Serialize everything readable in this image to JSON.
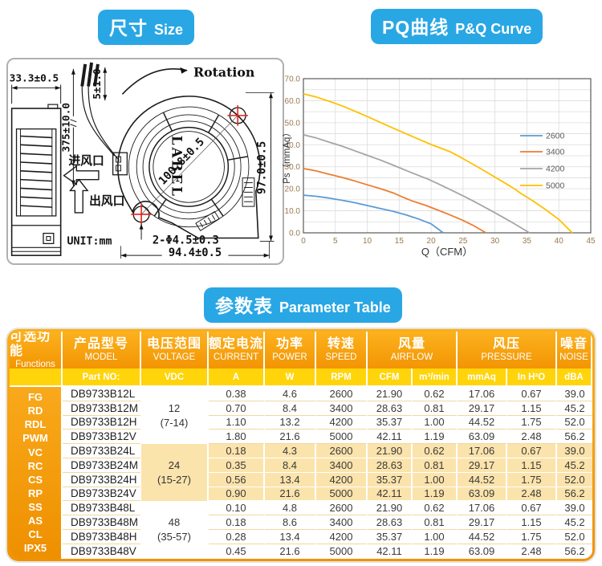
{
  "badges": {
    "size": {
      "zh": "尺寸",
      "en": "Size"
    },
    "pq": {
      "zh": "PQ曲线",
      "en": "P&Q Curve"
    },
    "param": {
      "zh": "参数表",
      "en": "Parameter Table"
    }
  },
  "drawing": {
    "rotation": "Rotation",
    "label": "LABEL",
    "unit": "UNIT:mm",
    "inlet": "进风口",
    "outlet": "出风口",
    "dim_side_width": "33.3±0.5",
    "dim_wire_length": "375±10.0",
    "dim_wire_tail": "5±1.0",
    "dim_hole_pitch": "100.8±0.5",
    "dim_height": "97.0±0.5",
    "dim_width": "94.4±0.5",
    "dim_holes": "2-Φ4.5±0.3"
  },
  "chart_data": {
    "type": "line",
    "title": "",
    "xlabel": "Q（CFM）",
    "ylabel": "Ps（mmAq）",
    "xlim": [
      0,
      45
    ],
    "ylim": [
      0,
      70
    ],
    "xticks": [
      0,
      5,
      10,
      15,
      20,
      25,
      30,
      35,
      40,
      45
    ],
    "yticks": [
      "0.0",
      "10.0",
      "20.0",
      "30.0",
      "40.0",
      "50.0",
      "60.0",
      "70.0"
    ],
    "grid": true,
    "grid_step_x": 5,
    "grid_step_y": 5,
    "legend_position": "right-inside",
    "axis_tick_color": "#9a7a4e",
    "series": [
      {
        "name": "2600",
        "color": "#5B9BD5",
        "points": [
          [
            0,
            17.1
          ],
          [
            2,
            16.6
          ],
          [
            4,
            15.8
          ],
          [
            6,
            14.8
          ],
          [
            8,
            13.7
          ],
          [
            10,
            12.4
          ],
          [
            12,
            11.1
          ],
          [
            14,
            9.8
          ],
          [
            16,
            8.2
          ],
          [
            18,
            6.3
          ],
          [
            20,
            4.1
          ],
          [
            21.9,
            0
          ]
        ]
      },
      {
        "name": "3400",
        "color": "#ED7D31",
        "points": [
          [
            0,
            29.2
          ],
          [
            2,
            28.1
          ],
          [
            4,
            26.6
          ],
          [
            6,
            25.2
          ],
          [
            8,
            23.6
          ],
          [
            10,
            21.8
          ],
          [
            12,
            20.1
          ],
          [
            14,
            18.2
          ],
          [
            15.5,
            16.3
          ],
          [
            17,
            14.5
          ],
          [
            19,
            12.6
          ],
          [
            21,
            10.4
          ],
          [
            23,
            8.1
          ],
          [
            25,
            5.6
          ],
          [
            26.5,
            3.5
          ],
          [
            28.6,
            0
          ]
        ]
      },
      {
        "name": "4200",
        "color": "#A5A5A5",
        "points": [
          [
            0,
            44.5
          ],
          [
            2,
            43.1
          ],
          [
            4,
            41.2
          ],
          [
            6,
            39.4
          ],
          [
            8,
            37.3
          ],
          [
            10,
            35.2
          ],
          [
            12,
            33.1
          ],
          [
            14,
            30.8
          ],
          [
            16,
            28.4
          ],
          [
            18,
            26.1
          ],
          [
            19.5,
            24.4
          ],
          [
            21,
            22.4
          ],
          [
            23,
            19.6
          ],
          [
            25,
            16.8
          ],
          [
            27,
            13.8
          ],
          [
            29,
            10.7
          ],
          [
            31,
            7.5
          ],
          [
            33,
            4.2
          ],
          [
            35.4,
            0
          ]
        ]
      },
      {
        "name": "5000",
        "color": "#FFC000",
        "points": [
          [
            0,
            63.1
          ],
          [
            2,
            61.7
          ],
          [
            4,
            59.8
          ],
          [
            6,
            57.7
          ],
          [
            8,
            55.3
          ],
          [
            10,
            52.8
          ],
          [
            12,
            50.2
          ],
          [
            14,
            47.6
          ],
          [
            16,
            45.1
          ],
          [
            18,
            42.6
          ],
          [
            20,
            40.1
          ],
          [
            22,
            37.9
          ],
          [
            23,
            36.8
          ],
          [
            25,
            33.7
          ],
          [
            27,
            30.4
          ],
          [
            29,
            27.0
          ],
          [
            31,
            23.6
          ],
          [
            33,
            20.1
          ],
          [
            34,
            18.0
          ],
          [
            36,
            14.4
          ],
          [
            38,
            10.4
          ],
          [
            40,
            6.1
          ],
          [
            42.1,
            0
          ]
        ]
      }
    ]
  },
  "table": {
    "columns": [
      {
        "zh": "可选功能",
        "en": "Functions"
      },
      {
        "zh": "产品型号",
        "en": "MODEL"
      },
      {
        "zh": "电压范围",
        "en": "VOLTAGE"
      },
      {
        "zh": "额定电流",
        "en": "CURRENT"
      },
      {
        "zh": "功率",
        "en": "POWER"
      },
      {
        "zh": "转速",
        "en": "SPEED"
      },
      {
        "zh": "风量",
        "en": "AIRFLOW"
      },
      {
        "zh": "风压",
        "en": "PRESSURE"
      },
      {
        "zh": "噪音",
        "en": "NOISE"
      }
    ],
    "units": [
      "Part NO:",
      "VDC",
      "A",
      "W",
      "RPM",
      "CFM",
      "m³/min",
      "mmAq",
      "In H²O",
      "dBA"
    ],
    "functions": [
      "FG",
      "RD",
      "RDL",
      "PWM",
      "VC",
      "RC",
      "CS",
      "RP",
      "SS",
      "AS",
      "CL",
      "IPX5"
    ],
    "groups": [
      {
        "voltage": "12",
        "range": "(7-14)",
        "shaded": false,
        "rows": [
          [
            "DB9733B12L",
            "0.38",
            "4.6",
            "2600",
            "21.90",
            "0.62",
            "17.06",
            "0.67",
            "39.0"
          ],
          [
            "DB9733B12M",
            "0.70",
            "8.4",
            "3400",
            "28.63",
            "0.81",
            "29.17",
            "1.15",
            "45.2"
          ],
          [
            "DB9733B12H",
            "1.10",
            "13.2",
            "4200",
            "35.37",
            "1.00",
            "44.52",
            "1.75",
            "52.0"
          ],
          [
            "DB9733B12V",
            "1.80",
            "21.6",
            "5000",
            "42.11",
            "1.19",
            "63.09",
            "2.48",
            "56.2"
          ]
        ]
      },
      {
        "voltage": "24",
        "range": "(15-27)",
        "shaded": true,
        "rows": [
          [
            "DB9733B24L",
            "0.18",
            "4.3",
            "2600",
            "21.90",
            "0.62",
            "17.06",
            "0.67",
            "39.0"
          ],
          [
            "DB9733B24M",
            "0.35",
            "8.4",
            "3400",
            "28.63",
            "0.81",
            "29.17",
            "1.15",
            "45.2"
          ],
          [
            "DB9733B24H",
            "0.56",
            "13.4",
            "4200",
            "35.37",
            "1.00",
            "44.52",
            "1.75",
            "52.0"
          ],
          [
            "DB9733B24V",
            "0.90",
            "21.6",
            "5000",
            "42.11",
            "1.19",
            "63.09",
            "2.48",
            "56.2"
          ]
        ]
      },
      {
        "voltage": "48",
        "range": "(35-57)",
        "shaded": false,
        "rows": [
          [
            "DB9733B48L",
            "0.10",
            "4.8",
            "2600",
            "21.90",
            "0.62",
            "17.06",
            "0.67",
            "39.0"
          ],
          [
            "DB9733B48M",
            "0.18",
            "8.6",
            "3400",
            "28.63",
            "0.81",
            "29.17",
            "1.15",
            "45.2"
          ],
          [
            "DB9733B48H",
            "0.28",
            "13.4",
            "4200",
            "35.37",
            "1.00",
            "44.52",
            "1.75",
            "52.0"
          ],
          [
            "DB9733B48V",
            "0.45",
            "21.6",
            "5000",
            "42.11",
            "1.19",
            "63.09",
            "2.48",
            "56.2"
          ]
        ]
      }
    ]
  }
}
